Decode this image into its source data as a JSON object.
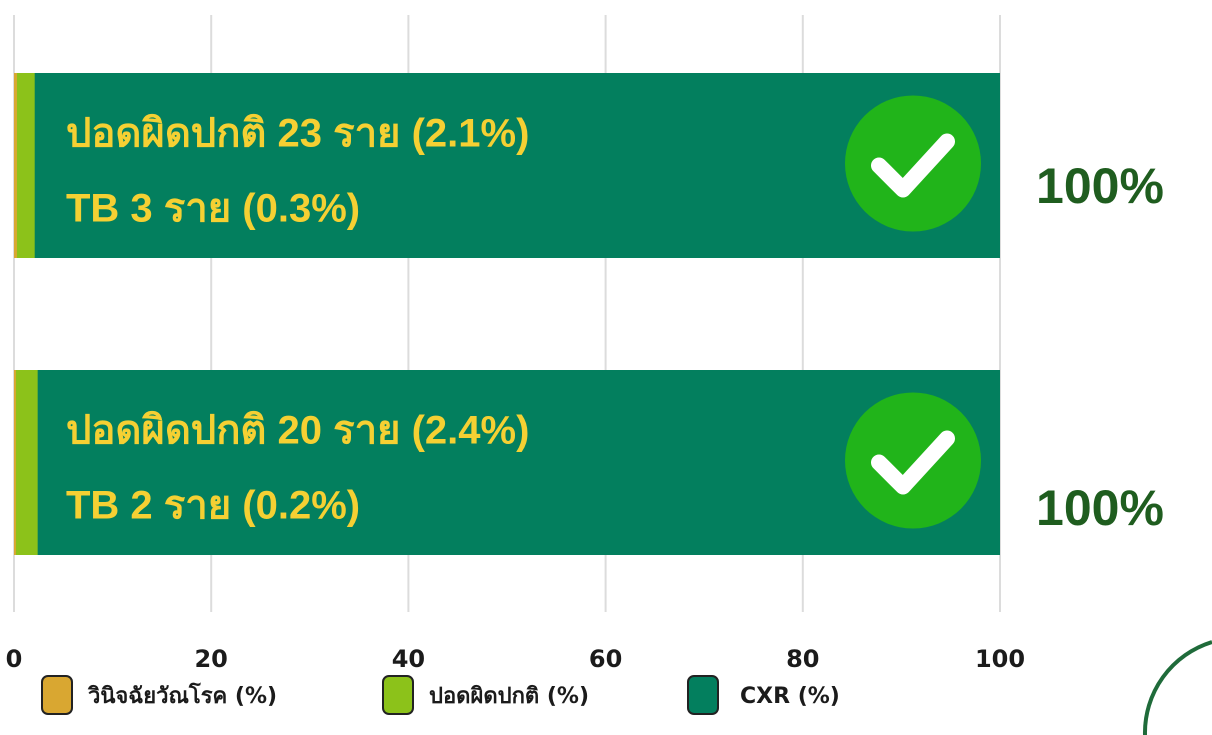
{
  "chart_data": {
    "type": "hbar",
    "barmode": "overlay",
    "categories": [
      null,
      null
    ],
    "series": [
      {
        "name": "วินิจฉัยวัณโรค (%)",
        "color": "#d9a731",
        "values": [
          0.3,
          0.2
        ]
      },
      {
        "name": "ปอดผิดปกติ (%)",
        "color": "#8cc21a",
        "values": [
          2.1,
          2.4
        ]
      },
      {
        "name": "CXR (%)",
        "color": "#037f5e",
        "values": [
          100,
          100
        ],
        "value_labels": [
          "100%",
          "100%"
        ]
      }
    ],
    "annotations": [
      [
        "ปอดผิดปกติ 23 ราย (2.1%)",
        "TB 3 ราย (0.3%)"
      ],
      [
        "ปอดผิดปกติ 20 ราย (2.4%)",
        "TB 2 ราย (0.2%)"
      ]
    ],
    "xlim": [
      0,
      100
    ],
    "xticks": [
      0,
      20,
      40,
      60,
      80,
      100
    ],
    "grid": true
  }
}
